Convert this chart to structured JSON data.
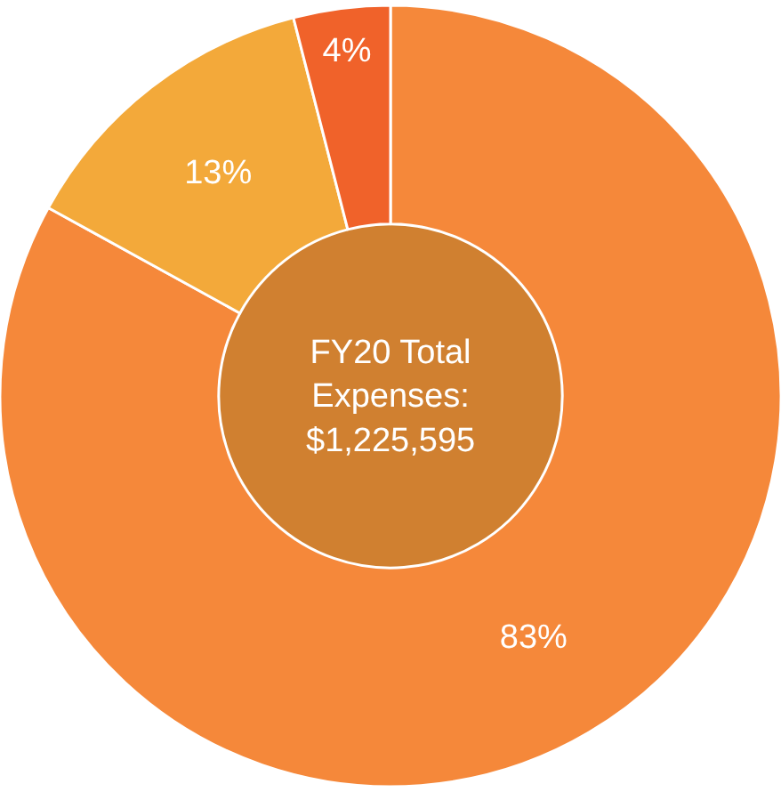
{
  "chart_data": {
    "type": "donut",
    "categories": [
      null,
      null,
      null
    ],
    "values": [
      83,
      13,
      4
    ],
    "colors": [
      "#f5883a",
      "#f3a93a",
      "#f0622a"
    ],
    "value_labels": [
      "83%",
      "13%",
      "4%"
    ],
    "annotations": [
      "FY20 Total\nExpenses:\n$1,225,595"
    ],
    "legend": false
  }
}
